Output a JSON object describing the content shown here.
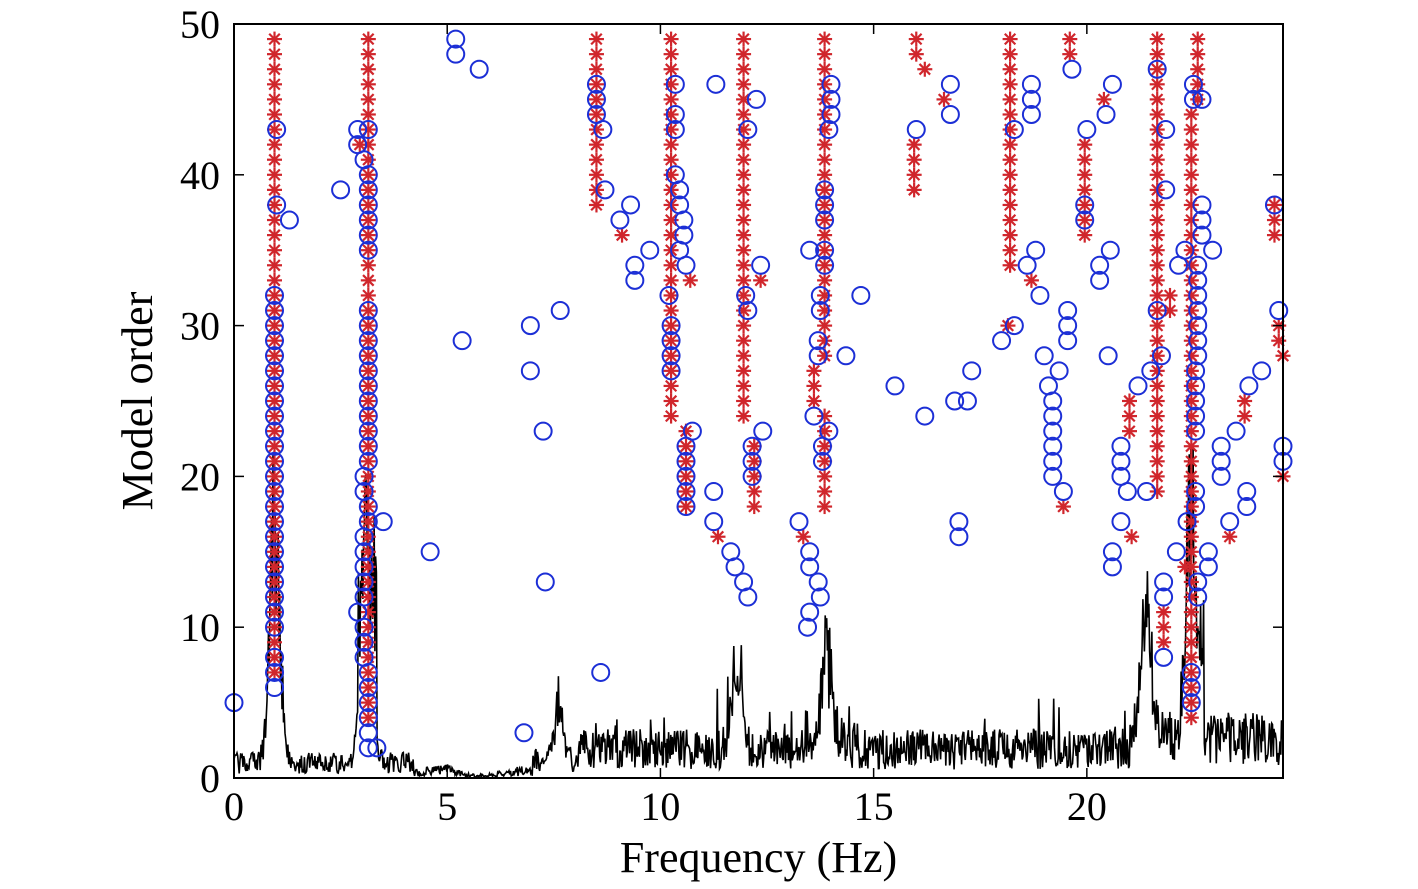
{
  "chart_data": {
    "type": "scatter",
    "title": "",
    "xlabel": "Frequency (Hz)",
    "ylabel": "Model order",
    "xlim": [
      0,
      24.6
    ],
    "ylim": [
      0,
      50
    ],
    "x_ticks": [
      "0",
      "5",
      "10",
      "15",
      "20"
    ],
    "x_tick_values": [
      0,
      5,
      10,
      15,
      20
    ],
    "y_ticks": [
      "0",
      "10",
      "20",
      "30",
      "40",
      "50"
    ],
    "y_tick_values": [
      0,
      10,
      20,
      30,
      40,
      50
    ],
    "grid": false,
    "colors": {
      "circle": "#1c2fd6",
      "star": "#d0262c",
      "spectrum": "#000000"
    },
    "circle_series": [
      {
        "f": 0.0,
        "orders": [
          5
        ]
      },
      {
        "f": 0.95,
        "orders": [
          6,
          7,
          8,
          10,
          11,
          12,
          13,
          14,
          15,
          16,
          17,
          18,
          19,
          20,
          21,
          22,
          23,
          24,
          25,
          26,
          27,
          28,
          29,
          30,
          31,
          32
        ]
      },
      {
        "f": 1.0,
        "orders": [
          38,
          43
        ]
      },
      {
        "f": 1.3,
        "orders": [
          37
        ]
      },
      {
        "f": 2.5,
        "orders": [
          39
        ]
      },
      {
        "f": 2.9,
        "orders": [
          11,
          42,
          43
        ]
      },
      {
        "f": 3.05,
        "orders": [
          8,
          9,
          10,
          12,
          13,
          14,
          15,
          16,
          19,
          20,
          41
        ]
      },
      {
        "f": 3.15,
        "orders": [
          2,
          3,
          4,
          5,
          6,
          7,
          17,
          18,
          21,
          22,
          23,
          24,
          25,
          26,
          27,
          28,
          29,
          30,
          31,
          35,
          36,
          37,
          38,
          39,
          40,
          43
        ]
      },
      {
        "f": 3.35,
        "orders": [
          2
        ]
      },
      {
        "f": 3.5,
        "orders": [
          17
        ]
      },
      {
        "f": 4.6,
        "orders": [
          15
        ]
      },
      {
        "f": 5.2,
        "orders": [
          48,
          49
        ]
      },
      {
        "f": 5.35,
        "orders": [
          29
        ]
      },
      {
        "f": 5.75,
        "orders": [
          47
        ]
      },
      {
        "f": 6.8,
        "orders": [
          3
        ]
      },
      {
        "f": 6.95,
        "orders": [
          27,
          30
        ]
      },
      {
        "f": 7.25,
        "orders": [
          23
        ]
      },
      {
        "f": 7.3,
        "orders": [
          13
        ]
      },
      {
        "f": 7.65,
        "orders": [
          31
        ]
      },
      {
        "f": 8.5,
        "orders": [
          44,
          45,
          46
        ]
      },
      {
        "f": 8.65,
        "orders": [
          43
        ]
      },
      {
        "f": 8.7,
        "orders": [
          39
        ]
      },
      {
        "f": 8.6,
        "orders": [
          7
        ]
      },
      {
        "f": 9.05,
        "orders": [
          37
        ]
      },
      {
        "f": 9.3,
        "orders": [
          38
        ]
      },
      {
        "f": 9.4,
        "orders": [
          33,
          34
        ]
      },
      {
        "f": 9.75,
        "orders": [
          35
        ]
      },
      {
        "f": 10.2,
        "orders": [
          32
        ]
      },
      {
        "f": 10.25,
        "orders": [
          27,
          28,
          29,
          30
        ]
      },
      {
        "f": 10.35,
        "orders": [
          40,
          43,
          44,
          46
        ]
      },
      {
        "f": 10.45,
        "orders": [
          35,
          38,
          39
        ]
      },
      {
        "f": 10.55,
        "orders": [
          36,
          37
        ]
      },
      {
        "f": 10.6,
        "orders": [
          34
        ]
      },
      {
        "f": 10.6,
        "orders": [
          18,
          19,
          20,
          21,
          22
        ]
      },
      {
        "f": 10.75,
        "orders": [
          23
        ]
      },
      {
        "f": 11.3,
        "orders": [
          46
        ]
      },
      {
        "f": 11.25,
        "orders": [
          17,
          19
        ]
      },
      {
        "f": 11.65,
        "orders": [
          15
        ]
      },
      {
        "f": 11.75,
        "orders": [
          14
        ]
      },
      {
        "f": 11.95,
        "orders": [
          13
        ]
      },
      {
        "f": 12.05,
        "orders": [
          12
        ]
      },
      {
        "f": 12.0,
        "orders": [
          32
        ]
      },
      {
        "f": 12.05,
        "orders": [
          31,
          43
        ]
      },
      {
        "f": 12.15,
        "orders": [
          20,
          21,
          22
        ]
      },
      {
        "f": 12.25,
        "orders": [
          45
        ]
      },
      {
        "f": 12.35,
        "orders": [
          34
        ]
      },
      {
        "f": 12.4,
        "orders": [
          23
        ]
      },
      {
        "f": 13.25,
        "orders": [
          17
        ]
      },
      {
        "f": 13.45,
        "orders": [
          10
        ]
      },
      {
        "f": 13.5,
        "orders": [
          11,
          14,
          15,
          35
        ]
      },
      {
        "f": 13.6,
        "orders": [
          24
        ]
      },
      {
        "f": 13.7,
        "orders": [
          13
        ]
      },
      {
        "f": 13.75,
        "orders": [
          12
        ]
      },
      {
        "f": 13.7,
        "orders": [
          28,
          29
        ]
      },
      {
        "f": 13.75,
        "orders": [
          31,
          32
        ]
      },
      {
        "f": 13.8,
        "orders": [
          21,
          22
        ]
      },
      {
        "f": 13.85,
        "orders": [
          34,
          35,
          37,
          38,
          39
        ]
      },
      {
        "f": 13.95,
        "orders": [
          23,
          43
        ]
      },
      {
        "f": 14.0,
        "orders": [
          44,
          45,
          46
        ]
      },
      {
        "f": 14.35,
        "orders": [
          28
        ]
      },
      {
        "f": 14.7,
        "orders": [
          32
        ]
      },
      {
        "f": 15.5,
        "orders": [
          26
        ]
      },
      {
        "f": 16.0,
        "orders": [
          43
        ]
      },
      {
        "f": 16.2,
        "orders": [
          24
        ]
      },
      {
        "f": 16.8,
        "orders": [
          44,
          46
        ]
      },
      {
        "f": 16.9,
        "orders": [
          25
        ]
      },
      {
        "f": 17.0,
        "orders": [
          16,
          17
        ]
      },
      {
        "f": 17.2,
        "orders": [
          25
        ]
      },
      {
        "f": 17.3,
        "orders": [
          27
        ]
      },
      {
        "f": 18.0,
        "orders": [
          29
        ]
      },
      {
        "f": 18.3,
        "orders": [
          30,
          43
        ]
      },
      {
        "f": 18.6,
        "orders": [
          34
        ]
      },
      {
        "f": 18.7,
        "orders": [
          44,
          45,
          46
        ]
      },
      {
        "f": 18.8,
        "orders": [
          35
        ]
      },
      {
        "f": 18.9,
        "orders": [
          32
        ]
      },
      {
        "f": 19.0,
        "orders": [
          28
        ]
      },
      {
        "f": 19.1,
        "orders": [
          26
        ]
      },
      {
        "f": 19.2,
        "orders": [
          20,
          21,
          22,
          23,
          24,
          25
        ]
      },
      {
        "f": 19.35,
        "orders": [
          27
        ]
      },
      {
        "f": 19.45,
        "orders": [
          19
        ]
      },
      {
        "f": 19.55,
        "orders": [
          29,
          30,
          31
        ]
      },
      {
        "f": 19.65,
        "orders": [
          47
        ]
      },
      {
        "f": 19.95,
        "orders": [
          37,
          38
        ]
      },
      {
        "f": 20.0,
        "orders": [
          43
        ]
      },
      {
        "f": 20.3,
        "orders": [
          33,
          34
        ]
      },
      {
        "f": 20.5,
        "orders": [
          28
        ]
      },
      {
        "f": 20.55,
        "orders": [
          35
        ]
      },
      {
        "f": 20.45,
        "orders": [
          44
        ]
      },
      {
        "f": 20.6,
        "orders": [
          46
        ]
      },
      {
        "f": 20.6,
        "orders": [
          14,
          15
        ]
      },
      {
        "f": 20.8,
        "orders": [
          17,
          20,
          21,
          22
        ]
      },
      {
        "f": 20.95,
        "orders": [
          19
        ]
      },
      {
        "f": 21.2,
        "orders": [
          26
        ]
      },
      {
        "f": 21.4,
        "orders": [
          19
        ]
      },
      {
        "f": 21.5,
        "orders": [
          27
        ]
      },
      {
        "f": 21.65,
        "orders": [
          31,
          47
        ]
      },
      {
        "f": 21.75,
        "orders": [
          28
        ]
      },
      {
        "f": 21.8,
        "orders": [
          8,
          12,
          13
        ]
      },
      {
        "f": 21.85,
        "orders": [
          39,
          43
        ]
      },
      {
        "f": 22.1,
        "orders": [
          15
        ]
      },
      {
        "f": 22.15,
        "orders": [
          34
        ]
      },
      {
        "f": 22.3,
        "orders": [
          35
        ]
      },
      {
        "f": 22.35,
        "orders": [
          17
        ]
      },
      {
        "f": 22.45,
        "orders": [
          5,
          6,
          7
        ]
      },
      {
        "f": 22.5,
        "orders": [
          45,
          46
        ]
      },
      {
        "f": 22.55,
        "orders": [
          18,
          19,
          23,
          24,
          25,
          26,
          27
        ]
      },
      {
        "f": 22.6,
        "orders": [
          12,
          13,
          28,
          29,
          30,
          31,
          32,
          33,
          34
        ]
      },
      {
        "f": 22.7,
        "orders": [
          36,
          37,
          38,
          45
        ]
      },
      {
        "f": 22.85,
        "orders": [
          14,
          15
        ]
      },
      {
        "f": 22.95,
        "orders": [
          35
        ]
      },
      {
        "f": 23.15,
        "orders": [
          20,
          21,
          22
        ]
      },
      {
        "f": 23.35,
        "orders": [
          17
        ]
      },
      {
        "f": 23.5,
        "orders": [
          23
        ]
      },
      {
        "f": 23.75,
        "orders": [
          18,
          19
        ]
      },
      {
        "f": 23.8,
        "orders": [
          26
        ]
      },
      {
        "f": 24.1,
        "orders": [
          27
        ]
      },
      {
        "f": 24.4,
        "orders": [
          38
        ]
      },
      {
        "f": 24.5,
        "orders": [
          31
        ]
      },
      {
        "f": 24.6,
        "orders": [
          21,
          22
        ]
      }
    ],
    "star_series": [
      {
        "f": 0.95,
        "orders": [
          7,
          8,
          9,
          10,
          11,
          12,
          13,
          14,
          15,
          16,
          17,
          18,
          19,
          20,
          21,
          22,
          23,
          24,
          25,
          26,
          27,
          28,
          29,
          30,
          31,
          32,
          33,
          34,
          35,
          36,
          37,
          38,
          39,
          40,
          41,
          42,
          43,
          44,
          45,
          46,
          47,
          48,
          49
        ]
      },
      {
        "f": 3.15,
        "orders": [
          4,
          5,
          6,
          7,
          8,
          9,
          10,
          11,
          12,
          13,
          14,
          15,
          16,
          17,
          18,
          19,
          20,
          21,
          22,
          23,
          24,
          25,
          26,
          27,
          28,
          29,
          30,
          31,
          32,
          33,
          34,
          35,
          36,
          37,
          38,
          39,
          40,
          41,
          42,
          43,
          44,
          45,
          46,
          47,
          48,
          49
        ]
      },
      {
        "f": 2.95,
        "orders": [
          42
        ]
      },
      {
        "f": 8.5,
        "orders": [
          38,
          39,
          40,
          41,
          42,
          43,
          44,
          45,
          46,
          47,
          48,
          49
        ]
      },
      {
        "f": 9.1,
        "orders": [
          36
        ]
      },
      {
        "f": 10.25,
        "orders": [
          24,
          25,
          26,
          27,
          28,
          29,
          30,
          31,
          32,
          33,
          34,
          35,
          36,
          37,
          38,
          39,
          40,
          41,
          42,
          43,
          44,
          45,
          46,
          47,
          48,
          49
        ]
      },
      {
        "f": 10.6,
        "orders": [
          18,
          19,
          20,
          21,
          22,
          23
        ]
      },
      {
        "f": 10.7,
        "orders": [
          33
        ]
      },
      {
        "f": 11.35,
        "orders": [
          16
        ]
      },
      {
        "f": 11.95,
        "orders": [
          24,
          25,
          26,
          27,
          28,
          29,
          30,
          31,
          32,
          33,
          34,
          35,
          36,
          37,
          38,
          39,
          40,
          41,
          42,
          43,
          44,
          45,
          46,
          47,
          48,
          49
        ]
      },
      {
        "f": 12.2,
        "orders": [
          18,
          19,
          20,
          21,
          22
        ]
      },
      {
        "f": 12.35,
        "orders": [
          33
        ]
      },
      {
        "f": 13.35,
        "orders": [
          16
        ]
      },
      {
        "f": 13.6,
        "orders": [
          25,
          26,
          27
        ]
      },
      {
        "f": 13.85,
        "orders": [
          18,
          19,
          20,
          21,
          22,
          23,
          24,
          28,
          29,
          30,
          31,
          32,
          33,
          34,
          35,
          36,
          37,
          38,
          39,
          40,
          41,
          42,
          43,
          44,
          45,
          46,
          47,
          48,
          49
        ]
      },
      {
        "f": 15.95,
        "orders": [
          39,
          40,
          41,
          42
        ]
      },
      {
        "f": 16.0,
        "orders": [
          48,
          49
        ]
      },
      {
        "f": 16.2,
        "orders": [
          47
        ]
      },
      {
        "f": 16.65,
        "orders": [
          45
        ]
      },
      {
        "f": 18.15,
        "orders": [
          30
        ]
      },
      {
        "f": 18.2,
        "orders": [
          34,
          35,
          36,
          37,
          38,
          39,
          40,
          41,
          42,
          43,
          44,
          45,
          46,
          47,
          48,
          49
        ]
      },
      {
        "f": 18.7,
        "orders": [
          33
        ]
      },
      {
        "f": 19.45,
        "orders": [
          18
        ]
      },
      {
        "f": 19.6,
        "orders": [
          48,
          49
        ]
      },
      {
        "f": 19.95,
        "orders": [
          36,
          37,
          38,
          39,
          40,
          41,
          42
        ]
      },
      {
        "f": 20.4,
        "orders": [
          45
        ]
      },
      {
        "f": 21.0,
        "orders": [
          23,
          24,
          25
        ]
      },
      {
        "f": 21.05,
        "orders": [
          16
        ]
      },
      {
        "f": 21.65,
        "orders": [
          19,
          20,
          21,
          22,
          23,
          24,
          25,
          26,
          27,
          28,
          29,
          30,
          31,
          32,
          33,
          34,
          35,
          36,
          37,
          38,
          39,
          40,
          41,
          42,
          43,
          44,
          45,
          46,
          47,
          48,
          49
        ]
      },
      {
        "f": 21.8,
        "orders": [
          9,
          10,
          11
        ]
      },
      {
        "f": 21.95,
        "orders": [
          31,
          32
        ]
      },
      {
        "f": 22.3,
        "orders": [
          14
        ]
      },
      {
        "f": 22.45,
        "orders": [
          4,
          5,
          6,
          7,
          8,
          9,
          10,
          11,
          12,
          13,
          14,
          15,
          16,
          17,
          18,
          19,
          20,
          21,
          22,
          23,
          24,
          25,
          26,
          27,
          28,
          29,
          30,
          31,
          32,
          33,
          34,
          35,
          36,
          37,
          38,
          39,
          40,
          41,
          42,
          43,
          44
        ]
      },
      {
        "f": 22.6,
        "orders": [
          45,
          46,
          47,
          48,
          49
        ]
      },
      {
        "f": 23.35,
        "orders": [
          16
        ]
      },
      {
        "f": 23.7,
        "orders": [
          24,
          25
        ]
      },
      {
        "f": 24.4,
        "orders": [
          36,
          37,
          38
        ]
      },
      {
        "f": 24.5,
        "orders": [
          29,
          30
        ]
      },
      {
        "f": 24.6,
        "orders": [
          20,
          28
        ]
      }
    ],
    "spectrum_peaks": [
      {
        "f": 0.95,
        "h": 21
      },
      {
        "f": 3.1,
        "h": 20
      },
      {
        "f": 5.0,
        "h": 0.3
      },
      {
        "f": 7.6,
        "h": 5
      },
      {
        "f": 11.8,
        "h": 7
      },
      {
        "f": 13.9,
        "h": 9
      },
      {
        "f": 21.4,
        "h": 11
      },
      {
        "f": 22.45,
        "h": 20
      }
    ]
  }
}
